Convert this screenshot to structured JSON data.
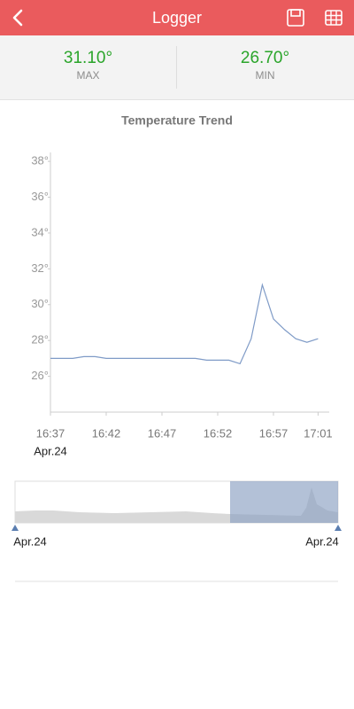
{
  "header": {
    "title": "Logger"
  },
  "stats": {
    "max": {
      "value": "31.10°",
      "label": "MAX"
    },
    "min": {
      "value": "26.70°",
      "label": "MIN"
    }
  },
  "chart_data": {
    "type": "line",
    "title": "Temperature Trend",
    "x": [
      "16:37",
      "16:38",
      "16:39",
      "16:40",
      "16:41",
      "16:42",
      "16:43",
      "16:44",
      "16:45",
      "16:46",
      "16:47",
      "16:48",
      "16:49",
      "16:50",
      "16:51",
      "16:52",
      "16:53",
      "16:54",
      "16:55",
      "16:56",
      "16:57",
      "16:58",
      "16:59",
      "17:00",
      "17:01"
    ],
    "values": [
      27.0,
      27.0,
      27.0,
      27.1,
      27.1,
      27.0,
      27.0,
      27.0,
      27.0,
      27.0,
      27.0,
      27.0,
      27.0,
      27.0,
      26.9,
      26.9,
      26.9,
      26.7,
      28.1,
      31.1,
      29.2,
      28.6,
      28.1,
      27.9,
      28.1
    ],
    "color": "#7f9bc7",
    "xlim": [
      "16:37",
      "17:02"
    ],
    "xticks": [
      "16:37",
      "16:42",
      "16:47",
      "16:52",
      "16:57",
      "17:01"
    ],
    "x_date_label": "Apr.24",
    "ylim": [
      24,
      38.5
    ],
    "yticks": [
      {
        "value": 26,
        "label": "26°"
      },
      {
        "value": 28,
        "label": "28°"
      },
      {
        "value": 30,
        "label": "30°"
      },
      {
        "value": 32,
        "label": "32°"
      },
      {
        "value": 34,
        "label": "34°"
      },
      {
        "value": 36,
        "label": "36°"
      },
      {
        "value": 38,
        "label": "38°"
      }
    ],
    "range_start_label": "Apr.24",
    "range_end_label": "Apr.24"
  }
}
